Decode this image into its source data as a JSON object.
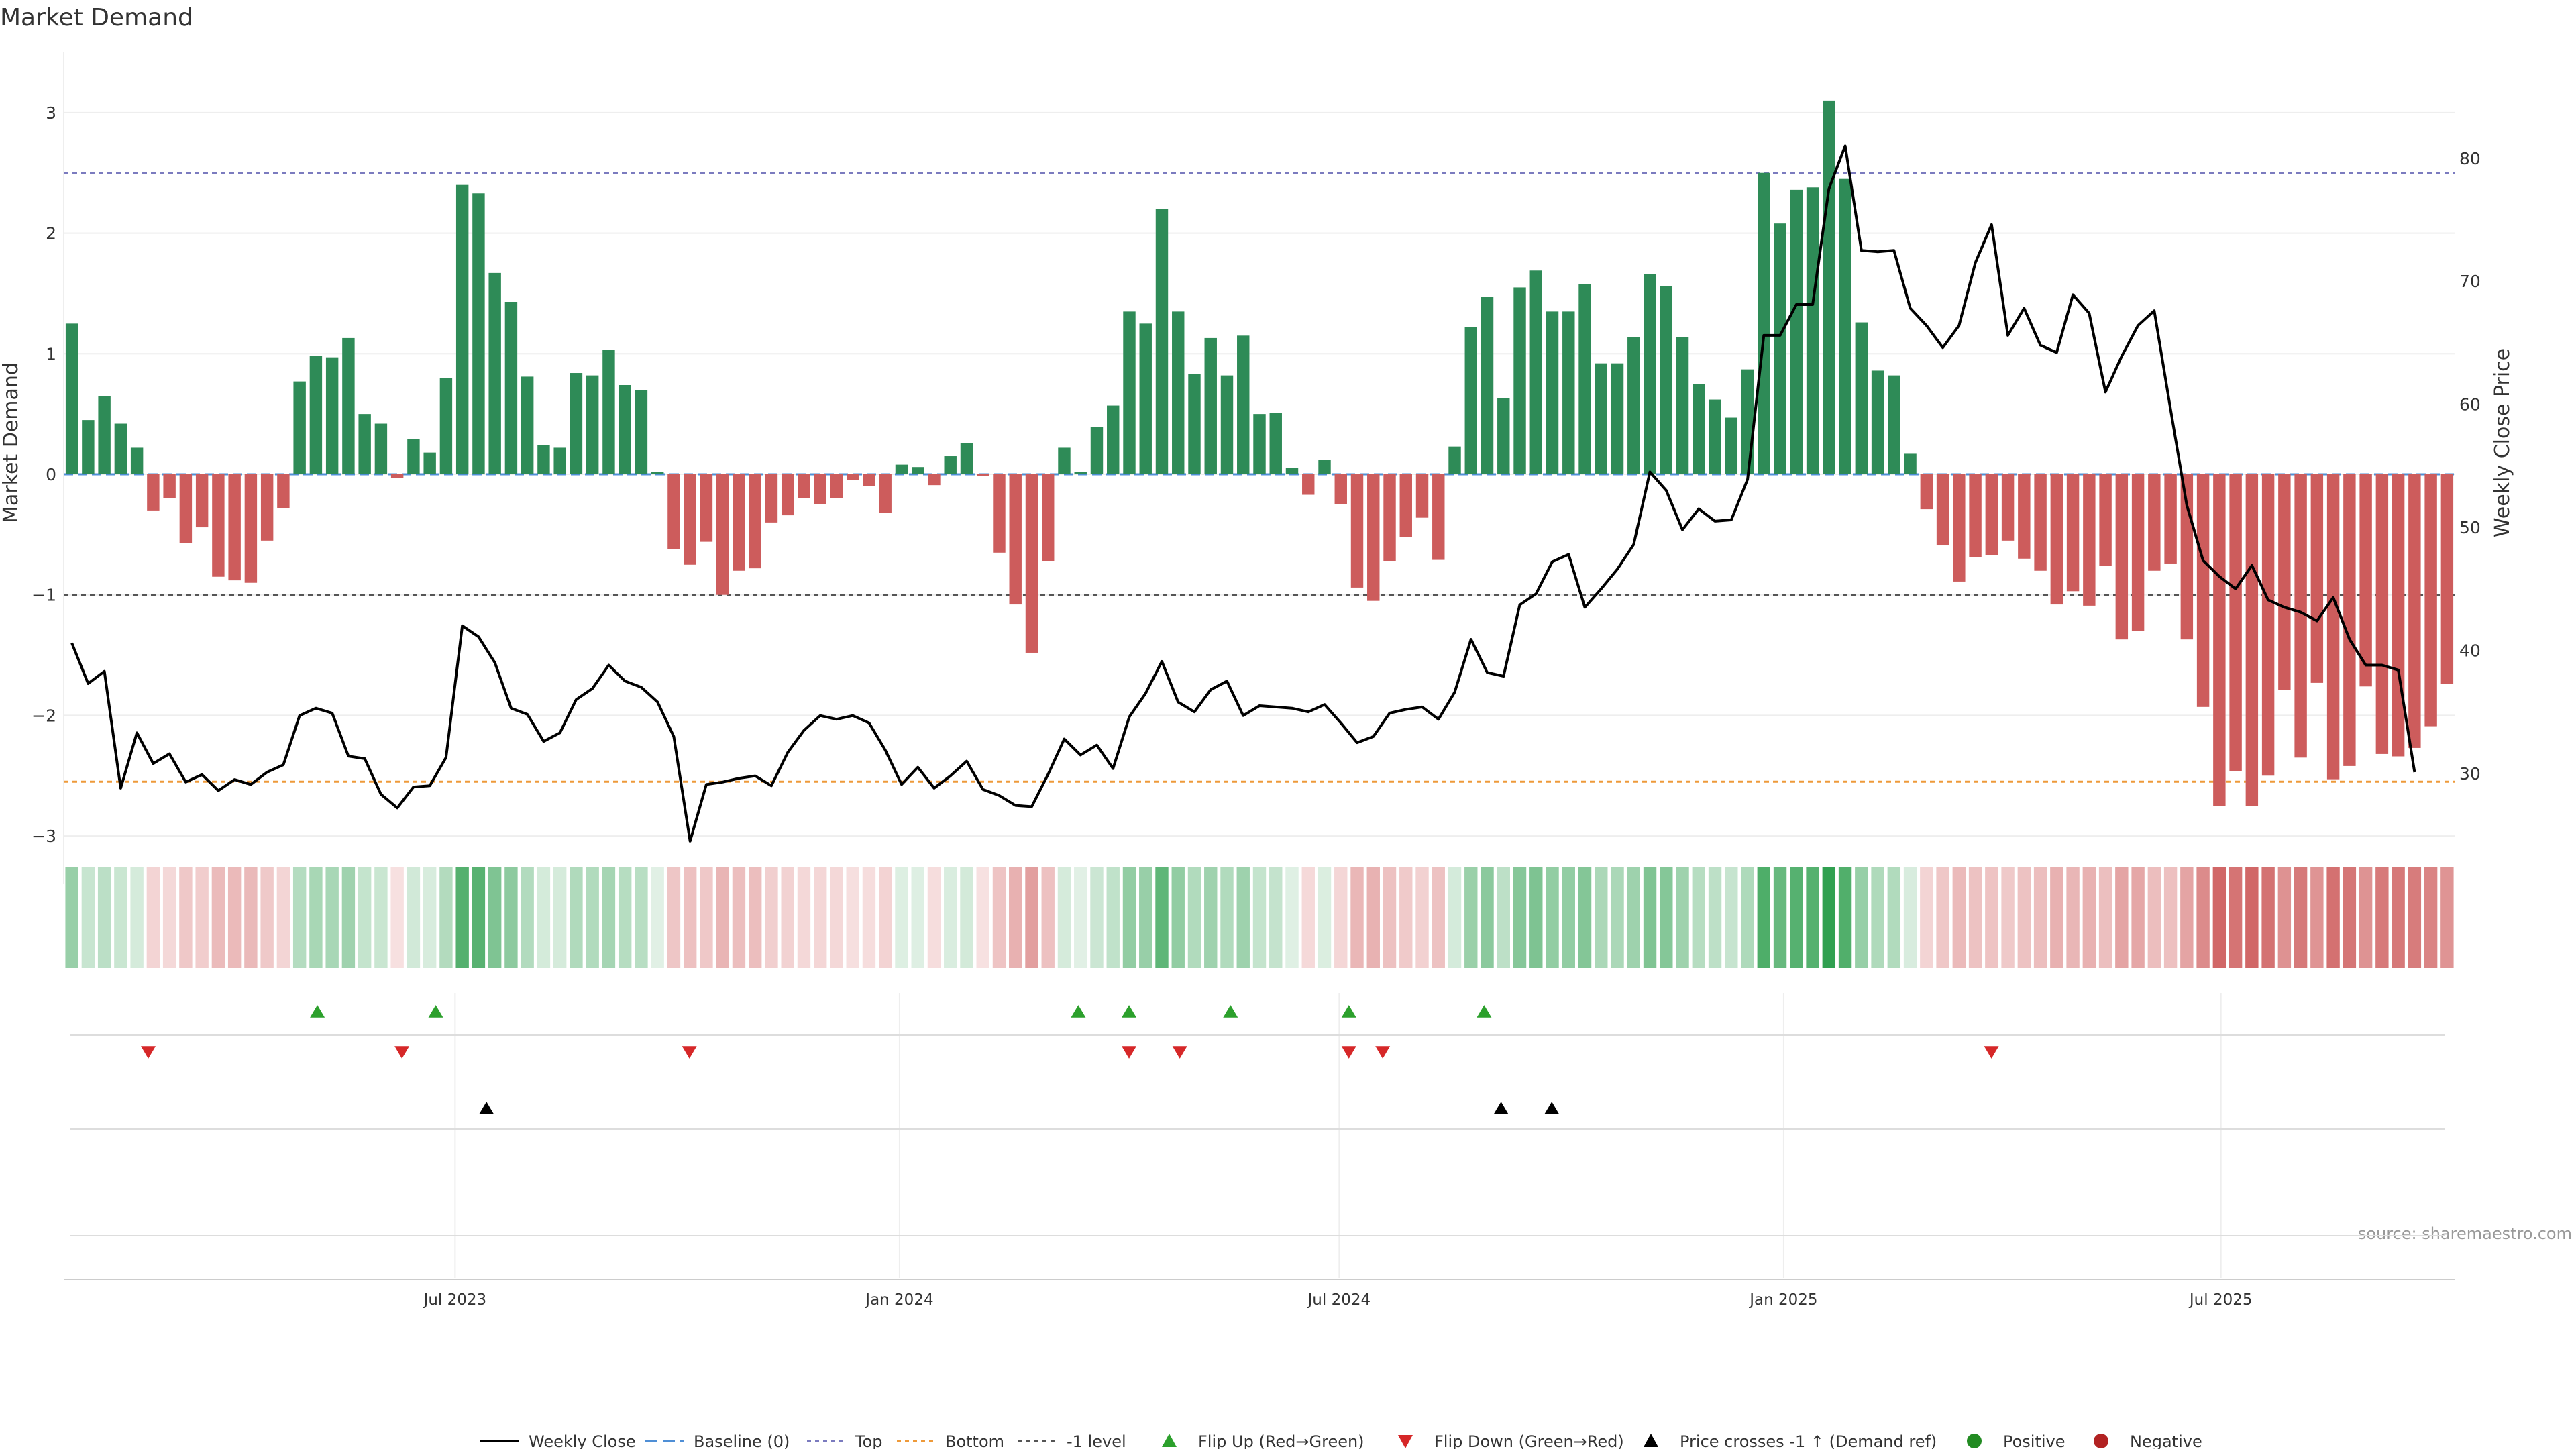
{
  "chart_data": {
    "type": "bar",
    "title": "Market Demand",
    "source": "source: sharemaestro.com",
    "left_axis": {
      "label": "Market Demand",
      "ylim": [
        -3.4,
        3.5
      ],
      "ticks": [
        3,
        2,
        1,
        0,
        -1,
        -2,
        -3
      ],
      "tick_labels": [
        "3",
        "2",
        "1",
        "0",
        "−1",
        "−2",
        "−3"
      ]
    },
    "right_axis": {
      "label": "Weekly Close Price",
      "ylim": [
        21.0,
        88.6
      ],
      "ticks": [
        80,
        70,
        60,
        50,
        40,
        30
      ],
      "tick_labels": [
        "80",
        "70",
        "60",
        "50",
        "40",
        "30"
      ]
    },
    "x_axis": {
      "start": "2023-01-20",
      "end": "2025-10-06",
      "ticks": [
        {
          "date": "2023-07-01",
          "label": "Jul 2023"
        },
        {
          "date": "2024-01-01",
          "label": "Jan 2024"
        },
        {
          "date": "2024-07-01",
          "label": "Jul 2024"
        },
        {
          "date": "2025-01-01",
          "label": "Jan 2025"
        },
        {
          "date": "2025-07-01",
          "label": "Jul 2025"
        }
      ]
    },
    "reference_lines": {
      "baseline": 0,
      "top": 2.5,
      "bottom": -2.55,
      "minus_one": -1
    },
    "colors": {
      "positive": "#2e8b57",
      "negative": "#cd5c5c",
      "price": "#000000",
      "top": "#7b7bbf",
      "bottom": "#ee9a3a",
      "minus_one": "#555555",
      "baseline": "#4f8fd6",
      "flip_up": "#2ca02c",
      "flip_down": "#d62728",
      "cross": "#000000"
    },
    "start_date": "2023-01-20",
    "demand": [
      1.25,
      0.45,
      0.65,
      0.42,
      0.22,
      -0.3,
      -0.2,
      -0.57,
      -0.44,
      -0.85,
      -0.88,
      -0.9,
      -0.55,
      -0.28,
      0.77,
      0.98,
      0.97,
      1.13,
      0.5,
      0.42,
      -0.03,
      0.29,
      0.18,
      0.8,
      2.4,
      2.33,
      1.67,
      1.43,
      0.81,
      0.24,
      0.22,
      0.84,
      0.82,
      1.03,
      0.74,
      0.7,
      0.02,
      -0.62,
      -0.75,
      -0.56,
      -1.0,
      -0.8,
      -0.78,
      -0.4,
      -0.34,
      -0.2,
      -0.25,
      -0.2,
      -0.05,
      -0.1,
      -0.32,
      0.08,
      0.06,
      -0.09,
      0.15,
      0.26,
      -0.01,
      -0.65,
      -1.08,
      -1.48,
      -0.72,
      0.22,
      0.02,
      0.39,
      0.57,
      1.35,
      1.25,
      2.2,
      1.35,
      0.83,
      1.13,
      0.82,
      1.15,
      0.5,
      0.51,
      0.05,
      -0.17,
      0.12,
      -0.25,
      -0.94,
      -1.05,
      -0.72,
      -0.52,
      -0.36,
      -0.71,
      0.23,
      1.22,
      1.47,
      0.63,
      1.55,
      1.69,
      1.35,
      1.35,
      1.58,
      0.92,
      0.92,
      1.14,
      1.66,
      1.56,
      1.14,
      0.75,
      0.62,
      0.47,
      0.87,
      2.5,
      2.08,
      2.36,
      2.38,
      3.1,
      2.45,
      1.26,
      0.86,
      0.82,
      0.17,
      -0.29,
      -0.59,
      -0.89,
      -0.69,
      -0.67,
      -0.55,
      -0.7,
      -0.8,
      -1.08,
      -0.97,
      -1.09,
      -0.76,
      -1.37,
      -1.3,
      -0.8,
      -0.74,
      -1.37,
      -1.93,
      -2.75,
      -2.46,
      -2.75,
      -2.5,
      -1.79,
      -2.35,
      -1.73,
      -2.53,
      -2.42,
      -1.76,
      -2.32,
      -2.34,
      -2.27,
      -2.09,
      -1.74
    ],
    "price": [
      40.6,
      37.3,
      38.3,
      28.8,
      33.3,
      30.8,
      31.6,
      29.3,
      29.9,
      28.6,
      29.5,
      29.1,
      30.1,
      30.7,
      34.7,
      35.3,
      34.9,
      31.4,
      31.2,
      28.3,
      27.2,
      28.9,
      29.0,
      31.3,
      42.0,
      41.1,
      39.0,
      35.3,
      34.8,
      32.6,
      33.3,
      36.0,
      36.9,
      38.8,
      37.5,
      37.0,
      35.8,
      33.0,
      24.5,
      29.1,
      29.3,
      29.6,
      29.8,
      29.0,
      31.7,
      33.5,
      34.7,
      34.4,
      34.7,
      34.1,
      31.9,
      29.1,
      30.5,
      28.8,
      29.8,
      31.0,
      28.7,
      28.2,
      27.4,
      27.3,
      29.9,
      32.8,
      31.5,
      32.3,
      30.4,
      34.6,
      36.5,
      39.1,
      35.8,
      35.0,
      36.8,
      37.5,
      34.7,
      35.5,
      35.4,
      35.3,
      35.0,
      35.6,
      34.1,
      32.5,
      33.0,
      34.9,
      35.2,
      35.4,
      34.4,
      36.6,
      40.9,
      38.2,
      37.9,
      43.7,
      44.6,
      47.2,
      47.8,
      43.5,
      45.0,
      46.6,
      48.6,
      54.5,
      53.0,
      49.8,
      51.5,
      50.5,
      50.6,
      53.9,
      65.6,
      65.6,
      68.1,
      68.1,
      77.5,
      81.0,
      72.5,
      72.4,
      72.5,
      67.8,
      66.4,
      64.6,
      66.4,
      71.5,
      74.6,
      65.6,
      67.8,
      64.8,
      64.2,
      68.9,
      67.4,
      61.0,
      63.9,
      66.4,
      67.6,
      59.6,
      51.8,
      47.3,
      46.0,
      45.0,
      46.9,
      44.1,
      43.5,
      43.1,
      42.4,
      44.3,
      40.9,
      38.8,
      38.8,
      38.4,
      30.1
    ],
    "flip_up": [
      "2023-05-05",
      "2023-06-23",
      "2024-03-15",
      "2024-04-05",
      "2024-05-17",
      "2024-07-05",
      "2024-08-30"
    ],
    "flip_down": [
      "2023-02-24",
      "2023-06-09",
      "2023-10-06",
      "2024-04-05",
      "2024-04-26",
      "2024-07-05",
      "2024-07-19",
      "2025-03-28"
    ],
    "price_cross_up": [
      "2023-07-14",
      "2024-09-06",
      "2024-09-27"
    ],
    "legend": [
      {
        "key": "close",
        "label": "Weekly Close"
      },
      {
        "key": "baseline",
        "label": "Baseline (0)"
      },
      {
        "key": "top",
        "label": "Top"
      },
      {
        "key": "bottom",
        "label": "Bottom"
      },
      {
        "key": "minus1",
        "label": "-1 level"
      },
      {
        "key": "flipup",
        "label": "Flip Up (Red→Green)"
      },
      {
        "key": "flipdown",
        "label": "Flip Down (Green→Red)"
      },
      {
        "key": "cross",
        "label": "Price crosses -1 ↑ (Demand ref)"
      },
      {
        "key": "positive",
        "label": "Positive"
      },
      {
        "key": "negative",
        "label": "Negative"
      }
    ]
  }
}
